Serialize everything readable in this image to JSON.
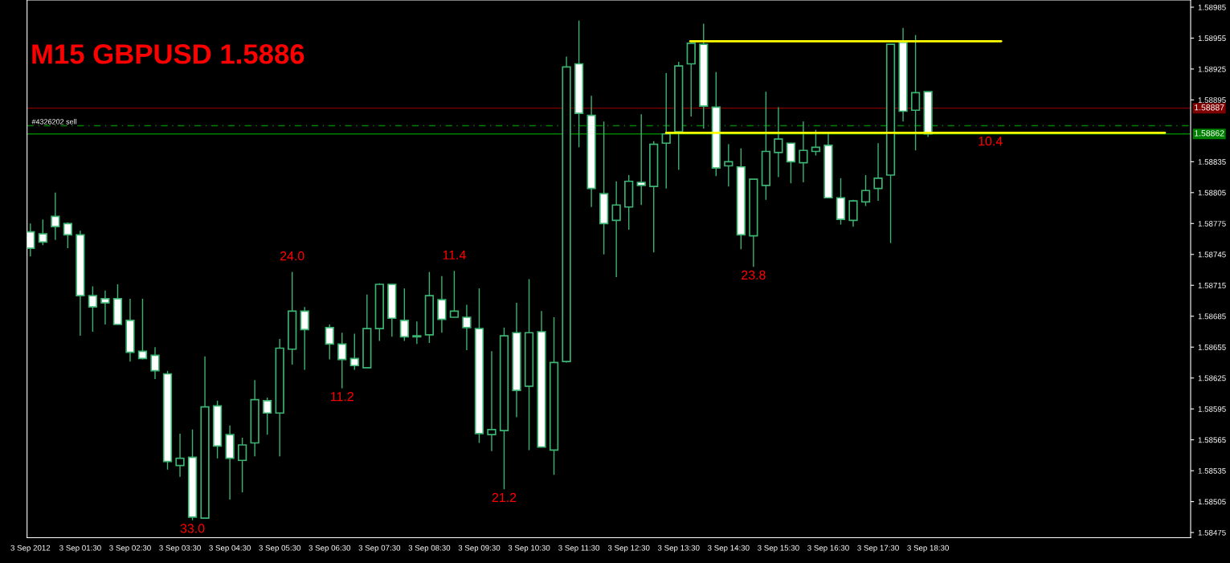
{
  "chart_data": {
    "type": "candlestick",
    "title": "M15 GBPUSD 1.5886",
    "x": [
      "2012-09-03T00:30",
      "2012-09-03T00:45",
      "2012-09-03T01:00",
      "2012-09-03T01:15",
      "2012-09-03T01:30",
      "2012-09-03T01:45",
      "2012-09-03T02:00",
      "2012-09-03T02:15",
      "2012-09-03T02:30",
      "2012-09-03T02:45",
      "2012-09-03T03:00",
      "2012-09-03T03:15",
      "2012-09-03T03:30",
      "2012-09-03T03:45",
      "2012-09-03T04:00",
      "2012-09-03T04:15",
      "2012-09-03T04:30",
      "2012-09-03T04:45",
      "2012-09-03T05:00",
      "2012-09-03T05:15",
      "2012-09-03T05:30",
      "2012-09-03T05:45",
      "2012-09-03T06:00",
      "2012-09-03T06:30",
      "2012-09-03T06:45",
      "2012-09-03T07:00",
      "2012-09-03T07:15",
      "2012-09-03T07:30",
      "2012-09-03T07:45",
      "2012-09-03T08:00",
      "2012-09-03T08:15",
      "2012-09-03T08:30",
      "2012-09-03T08:45",
      "2012-09-03T09:00",
      "2012-09-03T09:15",
      "2012-09-03T09:30",
      "2012-09-03T09:45",
      "2012-09-03T10:00",
      "2012-09-03T10:15",
      "2012-09-03T10:30",
      "2012-09-03T10:45",
      "2012-09-03T11:00",
      "2012-09-03T11:15",
      "2012-09-03T11:30",
      "2012-09-03T11:45",
      "2012-09-03T12:00",
      "2012-09-03T12:15",
      "2012-09-03T12:30",
      "2012-09-03T12:45",
      "2012-09-03T13:00",
      "2012-09-03T13:15",
      "2012-09-03T13:30",
      "2012-09-03T13:45",
      "2012-09-03T14:00",
      "2012-09-03T14:15",
      "2012-09-03T14:30",
      "2012-09-03T14:45",
      "2012-09-03T15:00",
      "2012-09-03T15:15",
      "2012-09-03T15:30",
      "2012-09-03T15:45",
      "2012-09-03T16:00",
      "2012-09-03T16:15",
      "2012-09-03T16:30",
      "2012-09-03T16:45",
      "2012-09-03T17:00",
      "2012-09-03T17:15",
      "2012-09-03T17:30",
      "2012-09-03T17:45",
      "2012-09-03T18:00",
      "2012-09-03T18:15",
      "2012-09-03T18:30"
    ],
    "ohlc": [
      [
        1.58767,
        1.58775,
        1.58743,
        1.58751
      ],
      [
        1.58765,
        1.58779,
        1.58754,
        1.58757
      ],
      [
        1.58782,
        1.58805,
        1.58759,
        1.58772
      ],
      [
        1.58775,
        1.58776,
        1.58751,
        1.58764
      ],
      [
        1.58764,
        1.58768,
        1.58666,
        1.58705
      ],
      [
        1.58705,
        1.58714,
        1.5867,
        1.58694
      ],
      [
        1.58702,
        1.5871,
        1.58677,
        1.58698
      ],
      [
        1.58702,
        1.58716,
        1.58677,
        1.58677
      ],
      [
        1.58681,
        1.58702,
        1.58641,
        1.5865
      ],
      [
        1.58651,
        1.58702,
        1.58643,
        1.58644
      ],
      [
        1.58647,
        1.58655,
        1.58624,
        1.58632
      ],
      [
        1.58629,
        1.58632,
        1.58536,
        1.58544
      ],
      [
        1.5854,
        1.58571,
        1.58529,
        1.58547
      ],
      [
        1.58548,
        1.58575,
        1.58487,
        1.5849
      ],
      [
        1.58489,
        1.58646,
        1.58489,
        1.58597
      ],
      [
        1.58598,
        1.58603,
        1.58547,
        1.58559
      ],
      [
        1.5857,
        1.58579,
        1.58507,
        1.58547
      ],
      [
        1.58545,
        1.58567,
        1.58514,
        1.5856
      ],
      [
        1.58562,
        1.58623,
        1.58549,
        1.58604
      ],
      [
        1.58603,
        1.58606,
        1.5857,
        1.58591
      ],
      [
        1.58591,
        1.58663,
        1.58549,
        1.58654
      ],
      [
        1.58653,
        1.58728,
        1.58638,
        1.5869
      ],
      [
        1.5869,
        1.58694,
        1.58633,
        1.58672
      ],
      [
        1.58674,
        1.58677,
        1.58643,
        1.58658
      ],
      [
        1.58658,
        1.58669,
        1.58615,
        1.58643
      ],
      [
        1.58644,
        1.58668,
        1.58633,
        1.58637
      ],
      [
        1.58635,
        1.58706,
        1.58635,
        1.58673
      ],
      [
        1.58673,
        1.58717,
        1.58661,
        1.58716
      ],
      [
        1.58716,
        1.58716,
        1.58665,
        1.58683
      ],
      [
        1.58681,
        1.58712,
        1.58661,
        1.58665
      ],
      [
        1.58666,
        1.5868,
        1.58658,
        1.58665
      ],
      [
        1.58667,
        1.58728,
        1.58659,
        1.58705
      ],
      [
        1.58701,
        1.58724,
        1.58669,
        1.58682
      ],
      [
        1.58684,
        1.58729,
        1.58684,
        1.5869
      ],
      [
        1.58684,
        1.58696,
        1.58652,
        1.58674
      ],
      [
        1.58673,
        1.58712,
        1.58562,
        1.58571
      ],
      [
        1.5857,
        1.58651,
        1.58554,
        1.58575
      ],
      [
        1.58574,
        1.58674,
        1.58517,
        1.58666
      ],
      [
        1.58669,
        1.58698,
        1.58587,
        1.58613
      ],
      [
        1.58617,
        1.58721,
        1.58555,
        1.58669
      ],
      [
        1.5867,
        1.5869,
        1.58558,
        1.58558
      ],
      [
        1.58555,
        1.58684,
        1.58531,
        1.5864
      ],
      [
        1.58641,
        1.58937,
        1.5864,
        1.58927
      ],
      [
        1.5893,
        1.58972,
        1.58849,
        1.58882
      ],
      [
        1.5888,
        1.58899,
        1.58791,
        1.58809
      ],
      [
        1.58804,
        1.58874,
        1.58745,
        1.58775
      ],
      [
        1.58778,
        1.58816,
        1.58723,
        1.58793
      ],
      [
        1.58791,
        1.58822,
        1.58769,
        1.58816
      ],
      [
        1.58815,
        1.58881,
        1.58793,
        1.58812
      ],
      [
        1.58811,
        1.58855,
        1.58747,
        1.58852
      ],
      [
        1.58853,
        1.58921,
        1.58809,
        1.58862
      ],
      [
        1.58864,
        1.58932,
        1.58827,
        1.58928
      ],
      [
        1.5893,
        1.5895,
        1.58879,
        1.5895
      ],
      [
        1.58949,
        1.58969,
        1.58867,
        1.58889
      ],
      [
        1.58888,
        1.58922,
        1.58821,
        1.58829
      ],
      [
        1.58831,
        1.58852,
        1.58811,
        1.58835
      ],
      [
        1.5883,
        1.58848,
        1.5875,
        1.58764
      ],
      [
        1.58763,
        1.58818,
        1.58733,
        1.58818
      ],
      [
        1.58812,
        1.58903,
        1.58798,
        1.58845
      ],
      [
        1.58844,
        1.58888,
        1.5882,
        1.58857
      ],
      [
        1.58853,
        1.58853,
        1.58814,
        1.58835
      ],
      [
        1.58834,
        1.58874,
        1.58815,
        1.58846
      ],
      [
        1.58845,
        1.58866,
        1.58841,
        1.58849
      ],
      [
        1.58851,
        1.58863,
        1.588,
        1.588
      ],
      [
        1.588,
        1.58819,
        1.58774,
        1.58779
      ],
      [
        1.58778,
        1.58798,
        1.58772,
        1.58797
      ],
      [
        1.58796,
        1.58822,
        1.58792,
        1.58807
      ],
      [
        1.58809,
        1.58853,
        1.58797,
        1.58819
      ],
      [
        1.58822,
        1.58949,
        1.58756,
        1.58949
      ],
      [
        1.58951,
        1.58965,
        1.58874,
        1.58884
      ],
      [
        1.58885,
        1.58958,
        1.58846,
        1.58902
      ],
      [
        1.58903,
        1.58903,
        1.58859,
        1.58862
      ]
    ],
    "color": "#3cb371",
    "colors": [
      "#ffffff",
      "#ffffff",
      "#ffffff",
      "#ffffff",
      "#ffffff",
      "#ffffff",
      "#ffffff",
      "#ffffff",
      "#ffffff",
      "#ffffff",
      "#ffffff",
      "#ffffff",
      "#000000",
      "#ffffff",
      "#000000",
      "#ffffff",
      "#ffffff",
      "#000000",
      "#000000",
      "#ffffff",
      "#000000",
      "#000000",
      "#ffffff",
      "#ffffff",
      "#ffffff",
      "#ffffff",
      "#000000",
      "#000000",
      "#ffffff",
      "#ffffff",
      "#ffffff",
      "#000000",
      "#ffffff",
      "#000000",
      "#ffffff",
      "#ffffff",
      "#000000",
      "#000000",
      "#ffffff",
      "#000000",
      "#ffffff",
      "#000000",
      "#000000",
      "#ffffff",
      "#ffffff",
      "#ffffff",
      "#000000",
      "#000000",
      "#ffffff",
      "#000000",
      "#000000",
      "#000000",
      "#000000",
      "#ffffff",
      "#ffffff",
      "#000000",
      "#ffffff",
      "#000000",
      "#000000",
      "#000000",
      "#ffffff",
      "#000000",
      "#000000",
      "#ffffff",
      "#ffffff",
      "#000000",
      "#000000",
      "#000000",
      "#000000",
      "#ffffff",
      "#000000",
      "#ffffff"
    ],
    "series": [
      {
        "type": "line",
        "x": [
          "2012-09-03T13:44",
          "2012-09-03T19:58"
        ],
        "values": [
          1.58952,
          1.58952
        ],
        "color": "#ffff00"
      },
      {
        "type": "line",
        "x": [
          "2012-09-03T13:15",
          "2012-09-03T23:15"
        ],
        "values": [
          1.58863,
          1.58863
        ],
        "color": "#ffff00"
      }
    ],
    "ref_lines": [
      {
        "axis": "y",
        "value": 1.58887,
        "label": "1.58887",
        "color": "#800000",
        "line_style": "solid"
      },
      {
        "axis": "y",
        "value": 1.5887,
        "label": "#4326202 sell",
        "color": "#008000",
        "line_style": "dashed"
      },
      {
        "axis": "y",
        "value": 1.58862,
        "label": "1.58862",
        "color": "#008000",
        "line_style": "solid"
      }
    ],
    "annotations": [
      {
        "text": "33.0",
        "x": "2012-09-03T03:45",
        "y": 1.58487
      },
      {
        "text": "24.0",
        "x": "2012-09-03T05:45",
        "y": 1.58728
      },
      {
        "text": "11.2",
        "x": "2012-09-03T06:45",
        "y": 1.58615
      },
      {
        "text": "11.4",
        "x": "2012-09-03T09:00",
        "y": 1.58729
      },
      {
        "text": "21.2",
        "x": "2012-09-03T10:00",
        "y": 1.58517
      },
      {
        "text": "23.8",
        "x": "2012-09-03T15:00",
        "y": 1.58733
      },
      {
        "text": "10.4",
        "x": "2012-09-03T19:45",
        "y": 1.58863
      }
    ],
    "xlim": [
      "2012-09-03T00:26",
      "2012-09-03T23:46"
    ],
    "xticks": [
      {
        "value": "2012-09-03T00:30",
        "label": "3 Sep 2012"
      },
      {
        "value": "2012-09-03T01:30",
        "label": "3 Sep 01:30"
      },
      {
        "value": "2012-09-03T02:30",
        "label": "3 Sep 02:30"
      },
      {
        "value": "2012-09-03T03:30",
        "label": "3 Sep 03:30"
      },
      {
        "value": "2012-09-03T04:30",
        "label": "3 Sep 04:30"
      },
      {
        "value": "2012-09-03T05:30",
        "label": "3 Sep 05:30"
      },
      {
        "value": "2012-09-03T06:30",
        "label": "3 Sep 06:30"
      },
      {
        "value": "2012-09-03T07:30",
        "label": "3 Sep 07:30"
      },
      {
        "value": "2012-09-03T08:30",
        "label": "3 Sep 08:30"
      },
      {
        "value": "2012-09-03T09:30",
        "label": "3 Sep 09:30"
      },
      {
        "value": "2012-09-03T10:30",
        "label": "3 Sep 10:30"
      },
      {
        "value": "2012-09-03T11:30",
        "label": "3 Sep 11:30"
      },
      {
        "value": "2012-09-03T12:30",
        "label": "3 Sep 12:30"
      },
      {
        "value": "2012-09-03T13:30",
        "label": "3 Sep 13:30"
      },
      {
        "value": "2012-09-03T14:30",
        "label": "3 Sep 14:30"
      },
      {
        "value": "2012-09-03T15:30",
        "label": "3 Sep 15:30"
      },
      {
        "value": "2012-09-03T16:30",
        "label": "3 Sep 16:30"
      },
      {
        "value": "2012-09-03T17:30",
        "label": "3 Sep 17:30"
      },
      {
        "value": "2012-09-03T18:30",
        "label": "3 Sep 18:30"
      }
    ],
    "ylim": [
      1.5847,
      1.58992
    ],
    "yticks": [
      1.58475,
      1.58505,
      1.58535,
      1.58565,
      1.58595,
      1.58625,
      1.58655,
      1.58685,
      1.58715,
      1.58745,
      1.58775,
      1.58805,
      1.58835,
      1.58895,
      1.58925,
      1.58955,
      1.58985
    ],
    "grid": false,
    "legend": false
  }
}
